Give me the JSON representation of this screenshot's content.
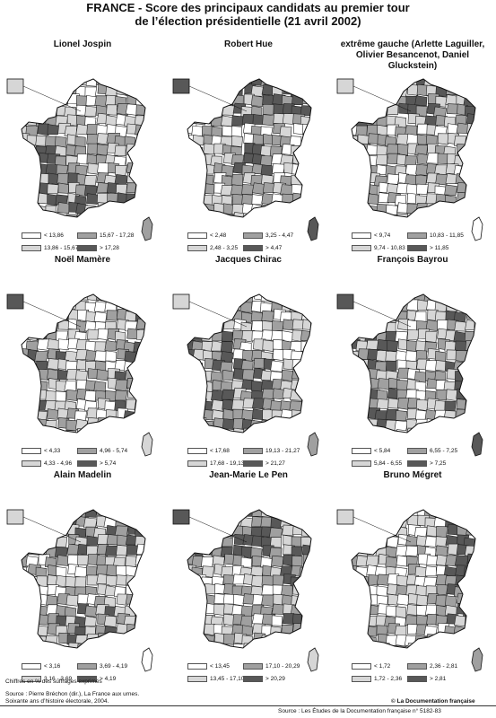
{
  "title_line1": "FRANCE -  Score des principaux candidats au premier tour",
  "title_line2": "de l’élection présidentielle (21 avril 2002)",
  "colors": {
    "c1": "#ffffff",
    "c2": "#d6d6d6",
    "c3": "#a0a0a0",
    "c4": "#585858",
    "border": "#222222"
  },
  "panels": [
    {
      "title": "Lionel Jospin",
      "legend": [
        "< 13,86",
        "13,86 - 15,67",
        "15,67 - 17,28",
        "> 17,28"
      ]
    },
    {
      "title": "Robert Hue",
      "legend": [
        "< 2,48",
        "2,48 - 3,25",
        "3,25 - 4,47",
        "> 4,47"
      ]
    },
    {
      "title": "extrême gauche (Arlette Laguiller, Olivier Besancenot, Daniel Gluckstein)",
      "legend": [
        "< 9,74",
        "9,74 - 10,83",
        "10,83 - 11,85",
        "> 11,85"
      ]
    },
    {
      "title": "Noël Mamère",
      "legend": [
        "< 4,33",
        "4,33 - 4,96",
        "4,96 - 5,74",
        "> 5,74"
      ]
    },
    {
      "title": "Jacques Chirac",
      "legend": [
        "< 17,68",
        "17,68 - 19,13",
        "19,13 - 21,27",
        "> 21,27"
      ]
    },
    {
      "title": "François Bayrou",
      "legend": [
        "< 5,84",
        "5,84 - 6,55",
        "6,55 - 7,25",
        "> 7,25"
      ]
    },
    {
      "title": "Alain Madelin",
      "legend": [
        "< 3,16",
        "3,16 - 3,69",
        "3,69 - 4,19",
        "> 4,19"
      ]
    },
    {
      "title": "Jean-Marie Le Pen",
      "legend": [
        "< 13,45",
        "13,45 - 17,10",
        "17,10 - 20,29",
        "> 20,29"
      ]
    },
    {
      "title": "Bruno Mégret",
      "legend": [
        "< 1,72",
        "1,72 - 2,36",
        "2,36 - 2,81",
        "> 2,81"
      ]
    }
  ],
  "footer": {
    "unit_note": "Chiffres en % des suffrages exprimés",
    "source_line1": "Source : Pierre Bréchon (dir.), La France aux urnes.",
    "source_line2": "Soixante ans d’histoire électorale, 2004.",
    "copyright": "© La Documentation française",
    "bottom_source": "Source : Les Études de la Documentation française n° 5182-83"
  }
}
